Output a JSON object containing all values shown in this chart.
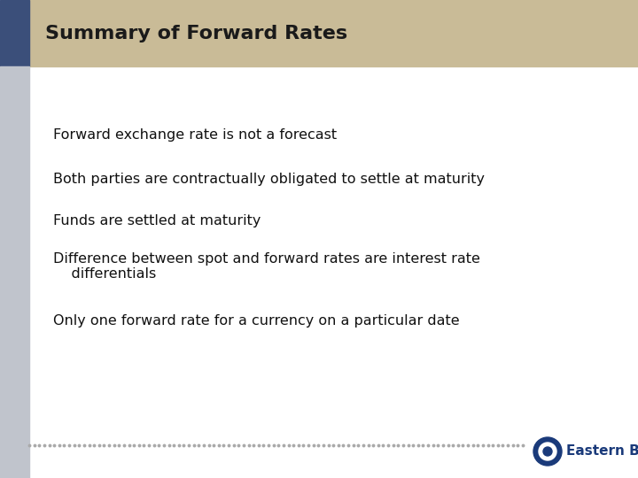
{
  "title": "Summary of Forward Rates",
  "title_bg_color": "#C9BB97",
  "title_text_color": "#1a1a1a",
  "title_fontsize": 16,
  "left_bar_dark_color": "#3B4F7A",
  "left_bar_light_color": "#C0C4CC",
  "bg_color": "#FFFFFF",
  "bullet_points": [
    "Forward exchange rate is not a forecast",
    "Both parties are contractually obligated to settle at maturity",
    "Funds are settled at maturity",
    "Difference between spot and forward rates are interest rate\n    differentials",
    "Only one forward rate for a currency on a particular date"
  ],
  "bullet_fontsize": 11.5,
  "bullet_text_color": "#111111",
  "dot_color": "#AAAAAA",
  "eastern_bank_color": "#1a3a7a",
  "eastern_bank_text": "Eastern Bank",
  "eastern_bank_fontsize": 11
}
